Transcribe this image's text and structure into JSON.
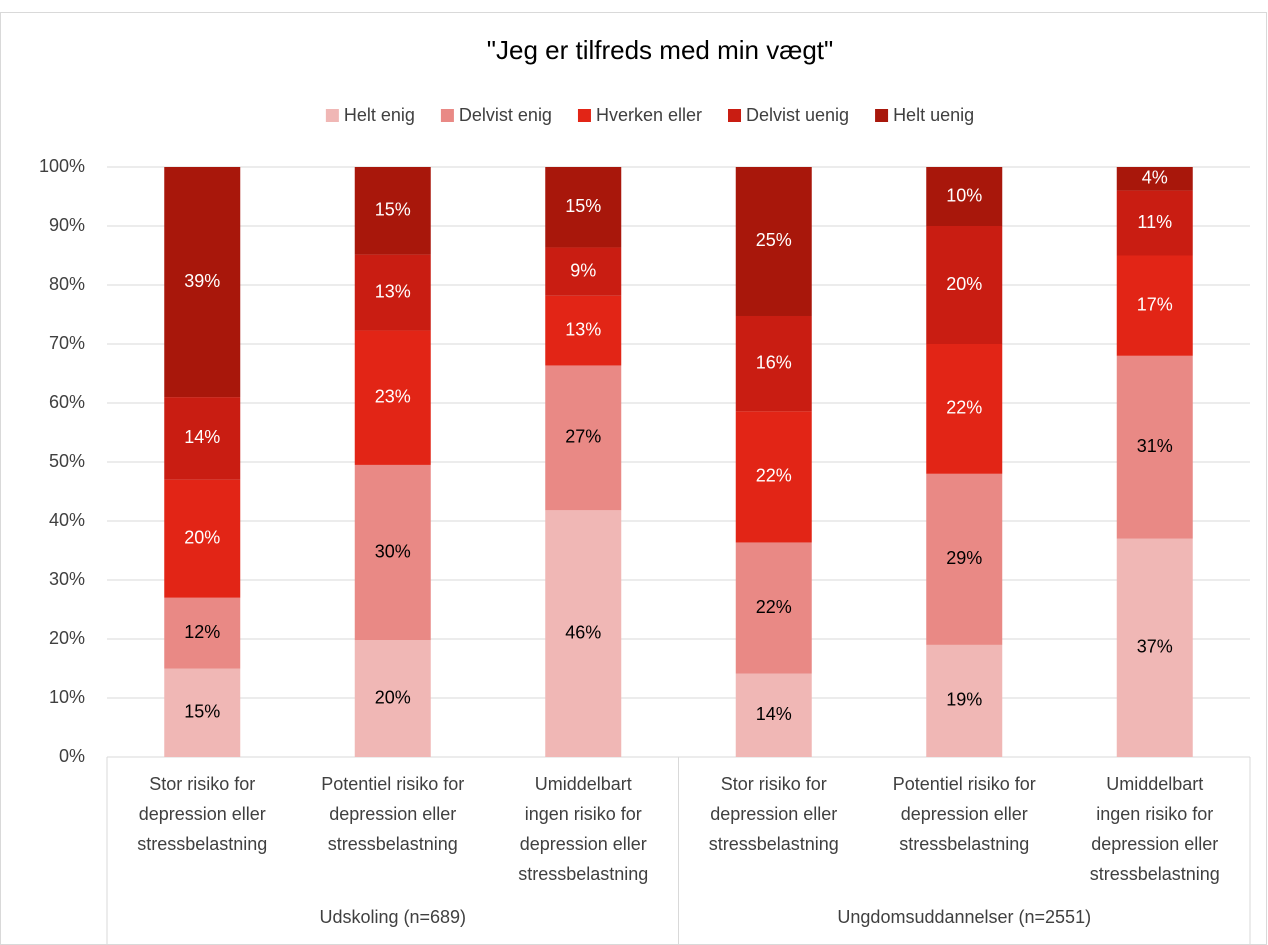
{
  "chart_data": {
    "type": "bar",
    "stacking": "percent",
    "title": "\"Jeg er tilfreds med min vægt\"",
    "categories": [
      [
        "Stor risiko for",
        "depression eller",
        "stressbelastning"
      ],
      [
        "Potentiel risiko for",
        "depression eller",
        "stressbelastning"
      ],
      [
        "Umiddelbart",
        "ingen risiko for",
        "depression eller",
        "stressbelastning"
      ],
      [
        "Stor risiko for",
        "depression eller",
        "stressbelastning"
      ],
      [
        "Potentiel risiko for",
        "depression eller",
        "stressbelastning"
      ],
      [
        "Umiddelbart",
        "ingen risiko for",
        "depression eller",
        "stressbelastning"
      ]
    ],
    "groups": [
      {
        "name": "Udskoling (n=689)",
        "size": 3
      },
      {
        "name": "Ungdomsuddannelser (n=2551)",
        "size": 3
      }
    ],
    "series": [
      {
        "name": "Helt enig",
        "color": "#f0b7b5",
        "values": [
          15,
          20,
          46,
          14,
          19,
          37
        ],
        "value_labels": [
          "15%",
          "20%",
          "46%",
          "14%",
          "19%",
          "37%"
        ]
      },
      {
        "name": "Delvist enig",
        "color": "#e98985",
        "values": [
          12,
          30,
          27,
          22,
          29,
          31
        ],
        "value_labels": [
          "12%",
          "30%",
          "27%",
          "22%",
          "29%",
          "31%"
        ]
      },
      {
        "name": "Hverken eller",
        "color": "#e22516",
        "values": [
          20,
          23,
          13,
          22,
          22,
          17
        ],
        "value_labels": [
          "20%",
          "23%",
          "13%",
          "22%",
          "22%",
          "17%"
        ]
      },
      {
        "name": "Delvist uenig",
        "color": "#c91d12",
        "values": [
          14,
          13,
          9,
          16,
          20,
          11
        ],
        "value_labels": [
          "14%",
          "13%",
          "9%",
          "16%",
          "20%",
          "11%"
        ]
      },
      {
        "name": "Helt uenig",
        "color": "#a8170b",
        "values": [
          39,
          15,
          15,
          25,
          10,
          4
        ],
        "value_labels": [
          "39%",
          "15%",
          "15%",
          "25%",
          "10%",
          "4%"
        ]
      }
    ],
    "ylim": [
      0,
      100
    ],
    "yticks": [
      {
        "value": 0,
        "label": "0%"
      },
      {
        "value": 10,
        "label": "10%"
      },
      {
        "value": 20,
        "label": "20%"
      },
      {
        "value": 30,
        "label": "30%"
      },
      {
        "value": 40,
        "label": "40%"
      },
      {
        "value": 50,
        "label": "50%"
      },
      {
        "value": 60,
        "label": "60%"
      },
      {
        "value": 70,
        "label": "70%"
      },
      {
        "value": 80,
        "label": "80%"
      },
      {
        "value": 90,
        "label": "90%"
      },
      {
        "value": 100,
        "label": "100%"
      }
    ],
    "grid": true,
    "legend": "top"
  }
}
